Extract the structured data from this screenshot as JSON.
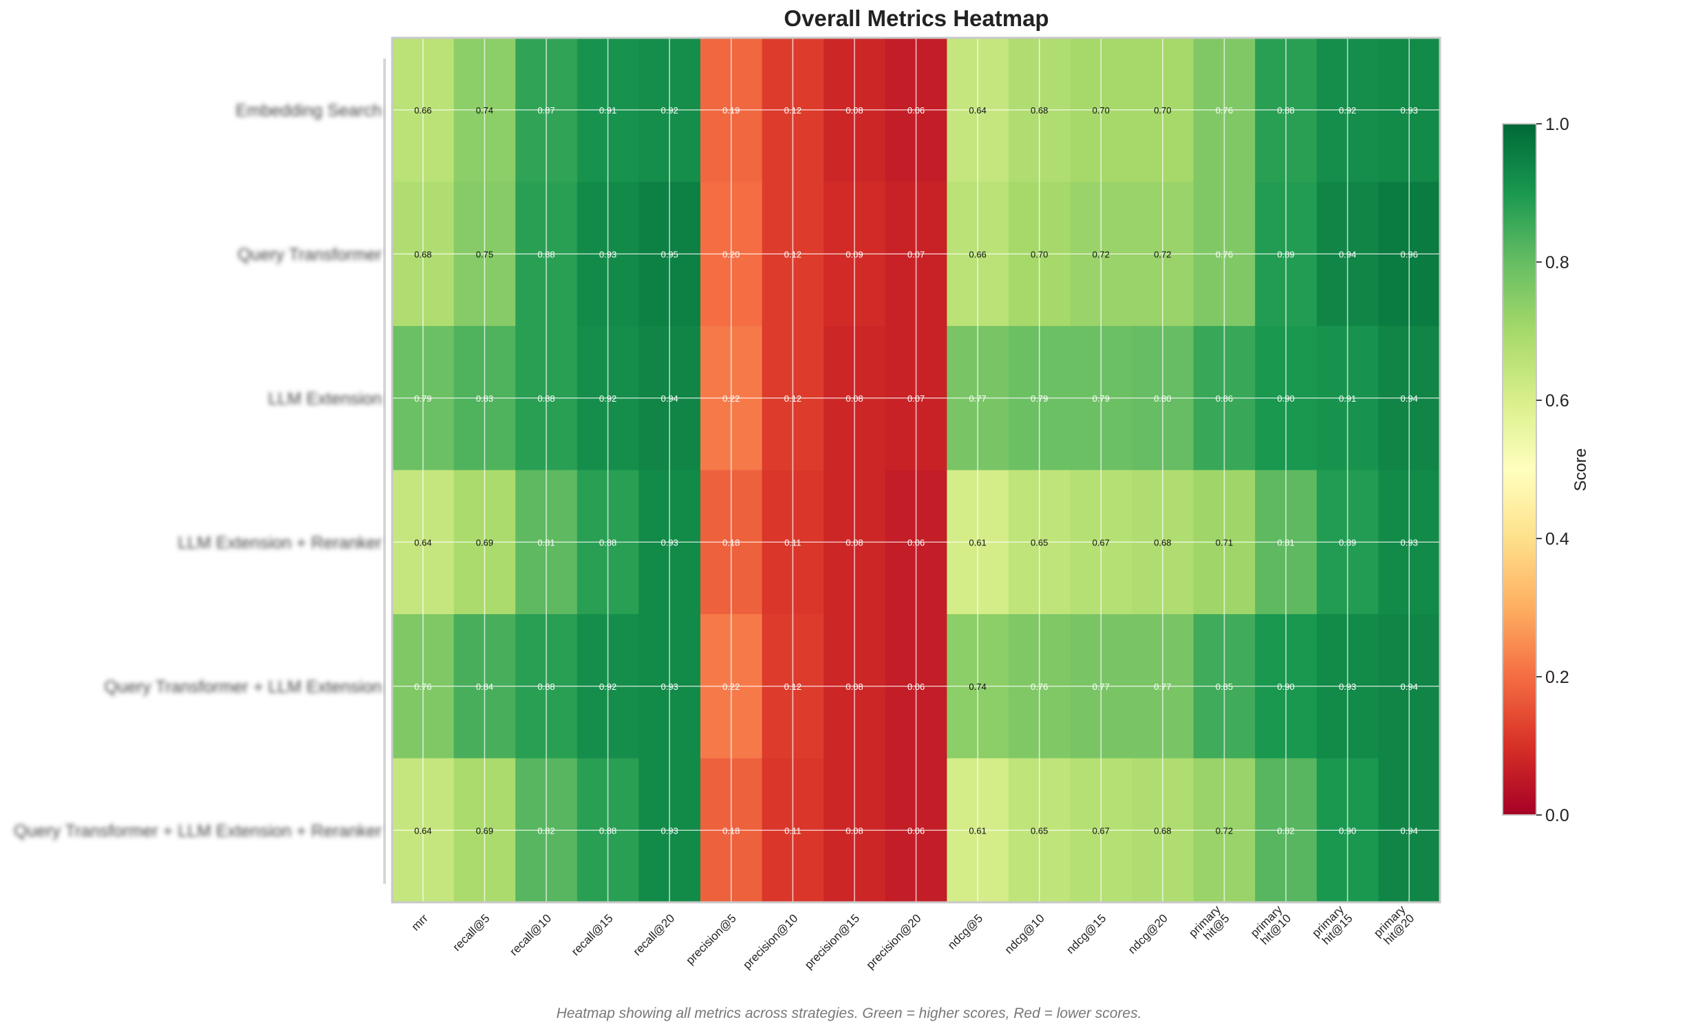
{
  "chart_data": {
    "type": "heatmap",
    "title": "Overall Metrics Heatmap",
    "columns": [
      "mrr",
      "recall@5",
      "recall@10",
      "recall@15",
      "recall@20",
      "precision@5",
      "precision@10",
      "precision@15",
      "precision@20",
      "ndcg@5",
      "ndcg@10",
      "ndcg@15",
      "ndcg@20",
      "primary hit@5",
      "primary hit@10",
      "primary hit@15",
      "primary hit@20"
    ],
    "rows": [
      {
        "label": "Embedding Search",
        "values": [
          0.66,
          0.74,
          0.87,
          0.91,
          0.92,
          0.19,
          0.12,
          0.08,
          0.06,
          0.64,
          0.68,
          0.7,
          0.7,
          0.76,
          0.88,
          0.92,
          0.93
        ]
      },
      {
        "label": "Query Transformer",
        "values": [
          0.68,
          0.75,
          0.88,
          0.93,
          0.95,
          0.2,
          0.12,
          0.09,
          0.07,
          0.66,
          0.7,
          0.72,
          0.72,
          0.76,
          0.89,
          0.94,
          0.96
        ]
      },
      {
        "label": "LLM Extension",
        "values": [
          0.79,
          0.83,
          0.88,
          0.92,
          0.94,
          0.22,
          0.12,
          0.08,
          0.07,
          0.77,
          0.79,
          0.79,
          0.8,
          0.86,
          0.9,
          0.91,
          0.94
        ]
      },
      {
        "label": "LLM Extension + Reranker",
        "values": [
          0.64,
          0.69,
          0.81,
          0.88,
          0.93,
          0.18,
          0.11,
          0.08,
          0.06,
          0.61,
          0.65,
          0.67,
          0.68,
          0.71,
          0.81,
          0.89,
          0.93
        ]
      },
      {
        "label": "Query Transformer + LLM Extension",
        "values": [
          0.76,
          0.84,
          0.88,
          0.92,
          0.93,
          0.22,
          0.12,
          0.08,
          0.06,
          0.74,
          0.76,
          0.77,
          0.77,
          0.85,
          0.9,
          0.93,
          0.94
        ]
      },
      {
        "label": "Query Transformer + LLM Extension + Reranker",
        "values": [
          0.64,
          0.69,
          0.82,
          0.88,
          0.93,
          0.18,
          0.11,
          0.08,
          0.06,
          0.61,
          0.65,
          0.67,
          0.68,
          0.72,
          0.82,
          0.9,
          0.94
        ]
      }
    ],
    "colorbar": {
      "label": "Score",
      "min": 0.0,
      "max": 1.0,
      "ticks": [
        "0.0",
        "0.2",
        "0.4",
        "0.6",
        "0.8",
        "1.0"
      ],
      "colormap": "RdYlGn"
    },
    "caption": "Heatmap showing all metrics across strategies. Green = higher scores, Red = lower scores."
  }
}
